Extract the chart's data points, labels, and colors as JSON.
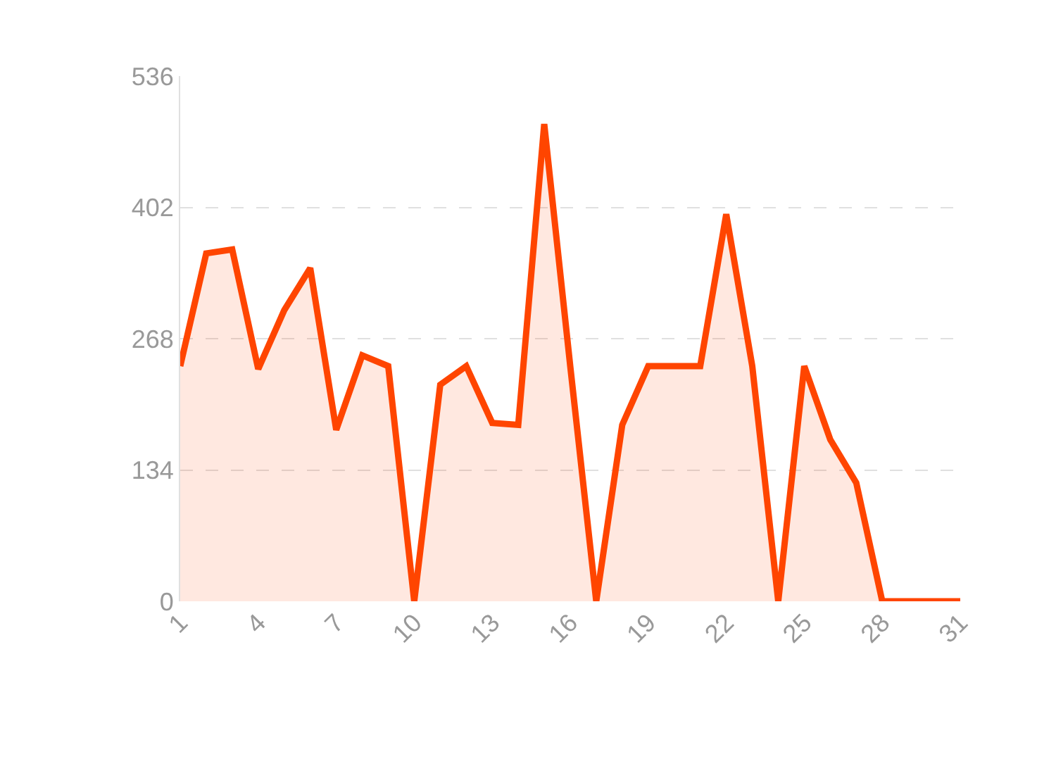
{
  "chart_data": {
    "type": "area",
    "x": [
      1,
      2,
      3,
      4,
      5,
      6,
      7,
      8,
      9,
      10,
      11,
      12,
      13,
      14,
      15,
      16,
      17,
      18,
      19,
      20,
      21,
      22,
      23,
      24,
      25,
      26,
      27,
      28,
      29,
      30,
      31
    ],
    "series": [
      {
        "color": "#ff4500",
        "values": [
          240,
          355,
          359,
          237,
          297,
          340,
          175,
          251,
          240,
          0,
          221,
          240,
          182,
          180,
          487,
          240,
          0,
          180,
          240,
          240,
          240,
          395,
          240,
          0,
          240,
          165,
          121,
          0,
          0,
          0,
          0
        ]
      }
    ],
    "xlim": [
      1,
      31
    ],
    "xticks": [
      1,
      4,
      7,
      10,
      13,
      16,
      19,
      22,
      25,
      28,
      31
    ],
    "ylim": [
      0,
      536
    ],
    "yticks": [
      0,
      134,
      268,
      402,
      536
    ],
    "grid": "y",
    "legend": false,
    "marker": "none",
    "line_style": "solid"
  }
}
